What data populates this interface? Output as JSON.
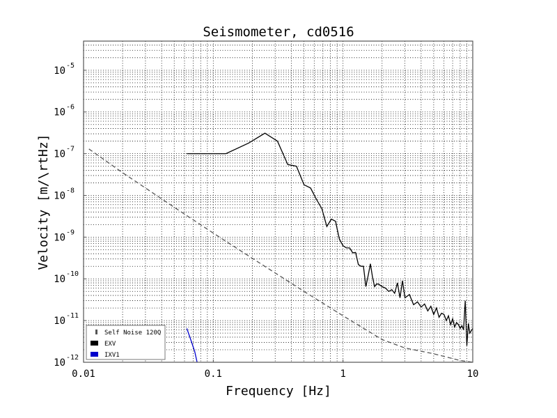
{
  "chart_data": {
    "type": "line",
    "title": "Seismometer, cd0516",
    "xlabel": "Frequency [Hz]",
    "ylabel": "Velocity [m/\\rtHz]",
    "xscale": "log",
    "yscale": "log",
    "xlim": [
      0.01,
      10
    ],
    "ylim": [
      1e-12,
      5e-05
    ],
    "grid": true,
    "legend_position": "lower-left",
    "x_ticks": [
      {
        "value": 0.01,
        "label": "0.01"
      },
      {
        "value": 0.1,
        "label": "0.1"
      },
      {
        "value": 1,
        "label": "1"
      },
      {
        "value": 10,
        "label": "10"
      }
    ],
    "y_ticks": [
      {
        "value": 1e-12,
        "base": "10",
        "exp": "-12"
      },
      {
        "value": 1e-11,
        "base": "10",
        "exp": "-11"
      },
      {
        "value": 1e-10,
        "base": "10",
        "exp": "-10"
      },
      {
        "value": 1e-09,
        "base": "10",
        "exp": "-9"
      },
      {
        "value": 1e-08,
        "base": "10",
        "exp": "-8"
      },
      {
        "value": 1e-07,
        "base": "10",
        "exp": "-7"
      },
      {
        "value": 1e-06,
        "base": "10",
        "exp": "-6"
      },
      {
        "value": 1e-05,
        "base": "10",
        "exp": "-5"
      }
    ],
    "series": [
      {
        "name": "Self Noise 120Q",
        "color": "#555555",
        "style": "dashed",
        "x": [
          0.011,
          0.02,
          0.05,
          0.1,
          0.2,
          0.5,
          1,
          2,
          3,
          5,
          8,
          10
        ],
        "y": [
          1.3e-07,
          3.5e-08,
          5.2e-09,
          1.25e-09,
          3.1e-10,
          5e-11,
          1.3e-11,
          3.5e-12,
          2.2e-12,
          1.6e-12,
          1.1e-12,
          1e-12
        ]
      },
      {
        "name": "EXV",
        "color": "#000000",
        "style": "solid",
        "x": [
          0.0625,
          0.125,
          0.1875,
          0.25,
          0.3125,
          0.375,
          0.4375,
          0.5,
          0.5625,
          0.625,
          0.6875,
          0.75,
          0.8125,
          0.875,
          0.9375,
          1.0,
          1.0625,
          1.125,
          1.1875,
          1.25,
          1.3125,
          1.375,
          1.4375,
          1.5,
          1.5625,
          1.625,
          1.6875,
          1.75,
          1.8125,
          1.875,
          2.0,
          2.125,
          2.25,
          2.375,
          2.5,
          2.625,
          2.75,
          2.875,
          3.0,
          3.25,
          3.5,
          3.75,
          4.0,
          4.25,
          4.5,
          4.75,
          5.0,
          5.25,
          5.5,
          5.75,
          6.0,
          6.25,
          6.5,
          6.75,
          7.0,
          7.25,
          7.5,
          7.75,
          8.0,
          8.25,
          8.5,
          8.75,
          9.0,
          9.25,
          9.5,
          10.0
        ],
        "y": [
          1e-07,
          1e-07,
          1.8e-07,
          3.1e-07,
          2e-07,
          5.5e-08,
          5e-08,
          1.8e-08,
          1.5e-08,
          8e-09,
          4.8e-09,
          1.8e-09,
          2.7e-09,
          2.4e-09,
          9e-10,
          6.2e-10,
          5.5e-10,
          5.5e-10,
          4.2e-10,
          4.3e-10,
          2.2e-10,
          2e-10,
          2e-10,
          6.5e-11,
          1.2e-10,
          2.3e-10,
          1.1e-10,
          6.5e-11,
          7.5e-11,
          7.5e-11,
          6.5e-11,
          6e-11,
          5e-11,
          5.5e-11,
          4.5e-11,
          8e-11,
          3.5e-11,
          9e-11,
          3.5e-11,
          4.2e-11,
          2.4e-11,
          2.8e-11,
          2.1e-11,
          2.5e-11,
          1.7e-11,
          2.2e-11,
          1.4e-11,
          2e-11,
          1.2e-11,
          1.5e-11,
          1.4e-11,
          1e-11,
          1.3e-11,
          8e-12,
          1.1e-11,
          7e-12,
          9e-12,
          8e-12,
          6.5e-12,
          7.5e-12,
          6e-12,
          3e-11,
          2.5e-12,
          8.5e-12,
          5e-12,
          6.5e-12
        ]
      },
      {
        "name": "IXV1",
        "color": "#0000cc",
        "style": "solid",
        "x": [
          0.0625,
          0.067,
          0.072,
          0.075
        ],
        "y": [
          6.5e-12,
          3.5e-12,
          1.8e-12,
          1e-12
        ]
      }
    ]
  }
}
